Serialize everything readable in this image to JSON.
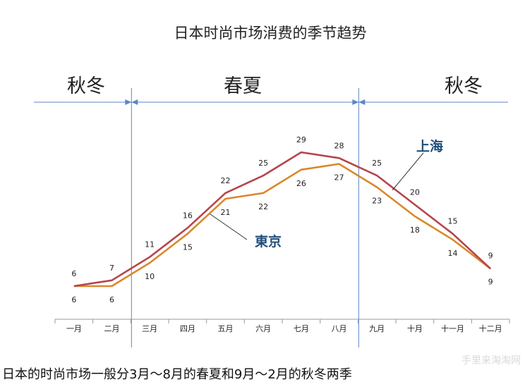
{
  "chart_data": {
    "type": "line",
    "title": "日本时尚市场消费的季节趋势",
    "categories": [
      "一月",
      "二月",
      "三月",
      "四月",
      "五月",
      "六月",
      "七月",
      "八月",
      "九月",
      "十月",
      "十一月",
      "十二月"
    ],
    "series": [
      {
        "name": "上海",
        "values": [
          6,
          7,
          11,
          16,
          22,
          25,
          29,
          28,
          25,
          20,
          15,
          9
        ],
        "color": "#b5454b"
      },
      {
        "name": "東京",
        "values": [
          6,
          6,
          10,
          15,
          21,
          22,
          26,
          27,
          23,
          18,
          14,
          9
        ],
        "color": "#d9882a"
      }
    ],
    "ylim": [
      0,
      32
    ],
    "grid": false,
    "seasons": [
      {
        "label": "秋冬",
        "from_index": 0,
        "to_index": 1
      },
      {
        "label": "春夏",
        "from_index": 2,
        "to_index": 7
      },
      {
        "label": "秋冬",
        "from_index": 8,
        "to_index": 11
      }
    ]
  },
  "caption": "日本的时尚市场一般分3月～8月的春夏和9月～2月的秋冬两季",
  "watermark": "手里来淘淘网"
}
